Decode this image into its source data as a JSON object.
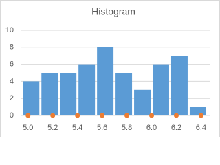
{
  "chart_data": {
    "type": "histogram",
    "title": "Histogram",
    "bins": [
      4.95,
      5.1,
      5.25,
      5.4,
      5.55,
      5.7,
      5.85,
      6.0,
      6.15,
      6.3,
      6.45
    ],
    "values": [
      4,
      5,
      5,
      6,
      8,
      5,
      3,
      6,
      7,
      1
    ],
    "color": "#5b9bd5",
    "markers": {
      "color": "#ed7d31",
      "x": [
        5.0,
        5.2,
        5.4,
        5.6,
        5.8,
        6.0,
        6.2,
        6.4
      ],
      "y": [
        0,
        0,
        0,
        0,
        0,
        0,
        0,
        0
      ]
    },
    "xlim": [
      4.94,
      6.47
    ],
    "xticks": [
      {
        "value": 5.0,
        "label": "5.0"
      },
      {
        "value": 5.2,
        "label": "5.2"
      },
      {
        "value": 5.4,
        "label": "5.4"
      },
      {
        "value": 5.6,
        "label": "5.6"
      },
      {
        "value": 5.8,
        "label": "5.8"
      },
      {
        "value": 6.0,
        "label": "6.0"
      },
      {
        "value": 6.2,
        "label": "6.2"
      },
      {
        "value": 6.4,
        "label": "6.4"
      }
    ],
    "ylim": [
      0,
      10
    ],
    "yticks": [
      0,
      2,
      4,
      6,
      8,
      10
    ],
    "grid": true
  }
}
